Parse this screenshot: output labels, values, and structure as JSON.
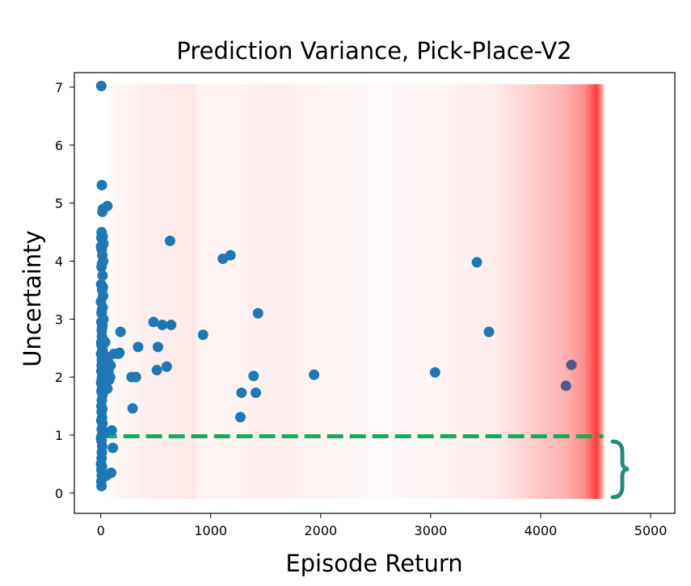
{
  "chart_data": {
    "type": "scatter",
    "title": "Prediction Variance, Pick-Place-V2",
    "xlabel": "Episode Return",
    "ylabel": "Uncertainty",
    "xlim": [
      -240,
      5220
    ],
    "ylim": [
      -0.35,
      7.25
    ],
    "xticks": [
      "0",
      "1000",
      "2000",
      "3000",
      "4000",
      "5000"
    ],
    "yticks": [
      "0",
      "1",
      "2",
      "3",
      "4",
      "5",
      "6",
      "7"
    ],
    "grid": false,
    "legend": "none",
    "colors": {
      "points": "#1f77b4",
      "threshold_line": "#1aa85a",
      "brace": "#2a8a7a",
      "background_heat": "#ff4040"
    },
    "threshold": {
      "y": 0.98,
      "x_range": [
        0,
        4570
      ]
    },
    "heat_band": {
      "x_range": [
        30,
        4580
      ],
      "y_range": [
        -0.1,
        7.05
      ]
    },
    "series": [
      {
        "x": [
          5,
          10,
          15,
          20,
          8,
          12,
          6,
          18,
          25,
          3,
          9,
          14,
          22,
          11,
          7,
          16,
          4,
          19,
          13,
          21,
          2,
          17,
          10,
          8,
          24,
          6,
          15,
          12,
          9,
          11,
          20,
          5,
          7,
          14,
          18,
          3,
          16,
          10,
          13,
          8,
          22,
          6,
          19,
          12,
          9,
          4,
          15,
          11,
          7,
          17,
          10,
          6,
          14,
          8,
          12,
          5,
          16,
          9,
          11,
          3,
          7,
          13,
          10,
          8,
          2,
          12,
          6,
          9,
          5,
          7,
          40,
          55,
          65,
          70,
          80,
          90,
          30,
          45,
          60,
          35,
          50,
          100,
          110,
          95,
          85,
          75,
          120,
          70,
          60,
          170,
          180,
          160,
          280,
          290,
          340,
          320,
          480,
          520,
          600,
          630,
          510,
          560,
          640,
          930,
          1110,
          1180,
          1430,
          1410,
          1390,
          1280,
          1270,
          1940,
          3040,
          3420,
          3530,
          4230,
          4280
        ],
        "y": [
          7.02,
          5.31,
          4.85,
          4.9,
          4.5,
          4.45,
          4.4,
          4.42,
          4.3,
          4.25,
          4.2,
          4.1,
          4.0,
          3.95,
          3.9,
          3.75,
          3.6,
          3.55,
          3.5,
          3.4,
          3.3,
          3.2,
          3.15,
          3.1,
          3.0,
          2.95,
          2.9,
          2.85,
          2.8,
          2.7,
          2.65,
          2.6,
          2.55,
          2.5,
          2.45,
          2.4,
          2.35,
          2.3,
          2.25,
          2.2,
          2.15,
          2.1,
          2.05,
          2.0,
          1.95,
          1.9,
          1.85,
          1.8,
          1.75,
          1.7,
          1.6,
          1.5,
          1.45,
          1.4,
          1.3,
          1.25,
          1.2,
          1.1,
          1.0,
          0.95,
          0.9,
          0.8,
          0.7,
          0.6,
          0.5,
          0.45,
          0.4,
          0.3,
          0.2,
          0.12,
          2.6,
          2.35,
          2.2,
          2.25,
          2.0,
          2.2,
          1.85,
          1.95,
          1.8,
          1.05,
          0.3,
          1.08,
          0.78,
          0.35,
          2.0,
          1.95,
          2.4,
          2.1,
          4.95,
          2.42,
          2.78,
          2.4,
          2.0,
          1.46,
          2.52,
          2.0,
          2.95,
          2.52,
          2.18,
          4.35,
          2.12,
          2.9,
          2.9,
          2.73,
          4.04,
          4.1,
          3.1,
          1.73,
          2.02,
          1.73,
          1.31,
          2.04,
          2.08,
          3.98,
          2.78,
          1.85,
          2.21
        ]
      }
    ]
  }
}
